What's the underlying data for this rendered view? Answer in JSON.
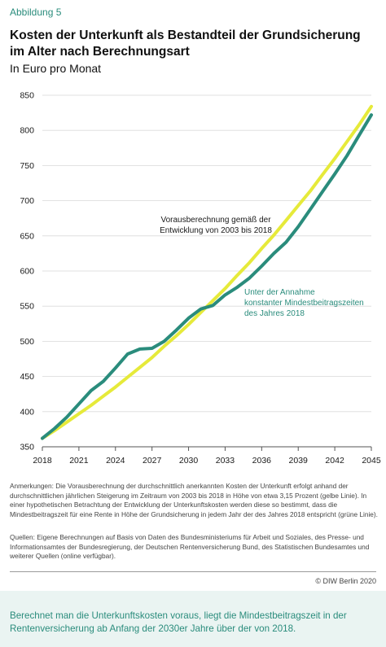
{
  "figure_label": "Abbildung 5",
  "title": "Kosten der Unterkunft als Bestandteil der Grundsicherung im Alter nach Berechnungsart",
  "subtitle": "In Euro pro Monat",
  "annotations": {
    "yellow_line": [
      "Vorausberechnung gemäß der",
      "Entwicklung von 2003 bis 2018"
    ],
    "green_line": [
      "Unter der Annahme",
      "konstanter Mindestbeitragszeiten",
      "des Jahres 2018"
    ]
  },
  "notes": "Anmerkungen: Die Vorausberechnung der durchschnittlich anerkannten Kosten der Unterkunft erfolgt anhand der durchschnittlichen jährlichen Steigerung im Zeitraum von 2003 bis 2018 in Höhe von etwa 3,15 Prozent (gelbe Linie). In einer hypothetischen Betrachtung der Entwicklung der Unterkunftskosten werden diese so bestimmt, dass die Mindestbeitragszeit für eine Rente in Höhe der Grundsicherung in jedem Jahr der des Jahres 2018 entspricht (grüne Linie).",
  "sources": "Quellen: Eigene Berechnungen auf Basis von Daten des Bundesministeriums für Arbeit und Soziales, des Presse- und Informationsamtes der Bundesregierung, der Deutschen Rentenversicherung Bund, des Statistischen Bundesamtes und weiterer Quellen (online verfügbar).",
  "copyright": "© DIW Berlin 2020",
  "footer": "Berechnet man die Unterkunftskosten voraus, liegt die Mindestbeitragszeit in der Rentenversicherung ab Anfang der 2030er Jahre über der von 2018.",
  "colors": {
    "yellow": "#e6ea3a",
    "green": "#2a8c7c",
    "grid": "#d9d9d9"
  },
  "chart_data": {
    "type": "line",
    "xlim": [
      2018,
      2045
    ],
    "ylim": [
      350,
      850
    ],
    "x_ticks": [
      2018,
      2021,
      2024,
      2027,
      2030,
      2033,
      2036,
      2039,
      2042,
      2045
    ],
    "y_ticks": [
      350,
      400,
      450,
      500,
      550,
      600,
      650,
      700,
      750,
      800,
      850
    ],
    "grid": "horizontal",
    "x": [
      2018,
      2019,
      2020,
      2021,
      2022,
      2023,
      2024,
      2025,
      2026,
      2027,
      2028,
      2029,
      2030,
      2031,
      2032,
      2033,
      2034,
      2035,
      2036,
      2037,
      2038,
      2039,
      2040,
      2041,
      2042,
      2043,
      2044,
      2045
    ],
    "series": [
      {
        "color": "yellow",
        "values": [
          362,
          373,
          385,
          397,
          409,
          422,
          435,
          449,
          463,
          477,
          493,
          508,
          524,
          541,
          558,
          575,
          594,
          612,
          632,
          651,
          672,
          693,
          714,
          737,
          760,
          784,
          808,
          834
        ]
      },
      {
        "color": "green",
        "values": [
          362,
          376,
          392,
          411,
          430,
          443,
          462,
          482,
          489,
          490,
          500,
          516,
          533,
          546,
          551,
          566,
          577,
          590,
          607,
          625,
          641,
          663,
          688,
          713,
          738,
          764,
          793,
          822
        ]
      }
    ]
  }
}
